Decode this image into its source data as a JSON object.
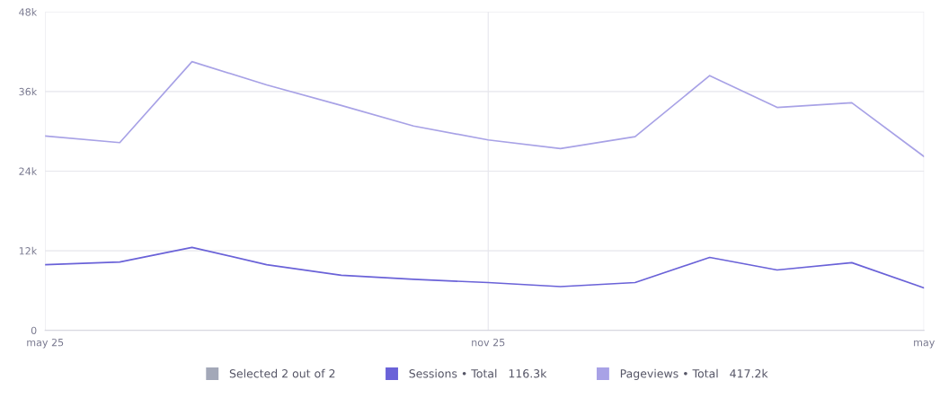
{
  "chart_data": {
    "type": "line",
    "x": [
      "2025-05",
      "2025-06",
      "2025-07",
      "2025-08",
      "2025-09",
      "2025-10",
      "2025-11",
      "2025-12",
      "2026-01",
      "2026-02",
      "2026-03",
      "2026-04",
      "2026-05"
    ],
    "series": [
      {
        "name": "Sessions • Total   116.3k",
        "color": "#6a62d8",
        "values": [
          9.9,
          10.3,
          12.5,
          9.9,
          8.3,
          7.7,
          7.2,
          6.6,
          7.2,
          11.0,
          9.1,
          10.2,
          6.4
        ]
      },
      {
        "name": "Pageviews • Total   417.2k",
        "color": "#a8a2e6",
        "values": [
          29.3,
          28.3,
          40.5,
          37.0,
          33.9,
          30.8,
          28.7,
          27.4,
          29.2,
          38.4,
          33.6,
          34.3,
          26.2
        ]
      }
    ],
    "legend_title": "Selected 2 out of 2",
    "xlim": [
      "2025-05",
      "2026-05"
    ],
    "xticks": [
      {
        "value": "2025-05",
        "label": "may 25"
      },
      {
        "value": "2025-11",
        "label": "nov 25"
      },
      {
        "value": "2026-05",
        "label": "may"
      }
    ],
    "ylim": [
      0,
      48
    ],
    "yticks": [
      {
        "value": 0,
        "label": "0"
      },
      {
        "value": 12,
        "label": "12k"
      },
      {
        "value": 24,
        "label": "24k"
      },
      {
        "value": 36,
        "label": "36k"
      },
      {
        "value": 48,
        "label": "48k"
      }
    ],
    "grid": true,
    "legend": "bottom",
    "marker": "none",
    "line_style": "solid"
  }
}
